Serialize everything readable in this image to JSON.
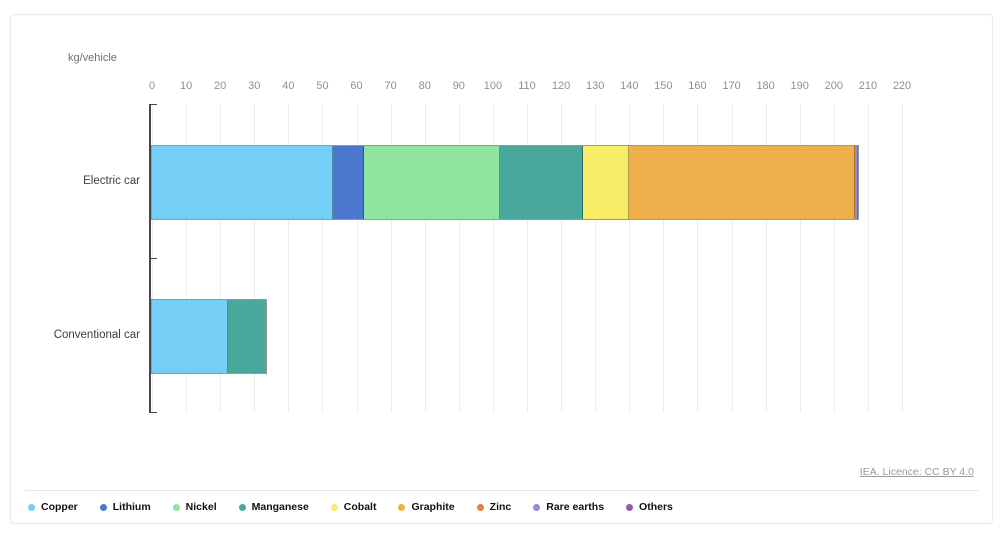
{
  "header": {
    "unit_label": "kg/vehicle"
  },
  "footer": {
    "source_link": "IEA. Licence: CC BY 4.0"
  },
  "chart_data": {
    "type": "bar",
    "orientation": "horizontal",
    "stacked": true,
    "title": "",
    "xlabel": "kg/vehicle",
    "ylabel": "",
    "categories": [
      "Electric car",
      "Conventional car"
    ],
    "series": [
      {
        "name": "Copper",
        "color": "#74CEF5",
        "values": [
          53.2,
          22.3
        ]
      },
      {
        "name": "Lithium",
        "color": "#4B77CE",
        "values": [
          8.9,
          0
        ]
      },
      {
        "name": "Nickel",
        "color": "#8FE59F",
        "values": [
          39.9,
          0
        ]
      },
      {
        "name": "Manganese",
        "color": "#49A89B",
        "values": [
          24.5,
          11.2
        ]
      },
      {
        "name": "Cobalt",
        "color": "#F8ED67",
        "values": [
          13.3,
          0
        ]
      },
      {
        "name": "Graphite",
        "color": "#EFAF4B",
        "values": [
          66.3,
          0
        ]
      },
      {
        "name": "Zinc",
        "color": "#EE7C42",
        "values": [
          0.1,
          0
        ]
      },
      {
        "name": "Rare earths",
        "color": "#9C86DB",
        "values": [
          0.5,
          0
        ]
      },
      {
        "name": "Others",
        "color": "#9159A6",
        "values": [
          0.3,
          0
        ]
      }
    ],
    "axis": {
      "min": 0,
      "max": 220,
      "tick_step": 10
    },
    "grid": true,
    "legend_position": "bottom"
  }
}
